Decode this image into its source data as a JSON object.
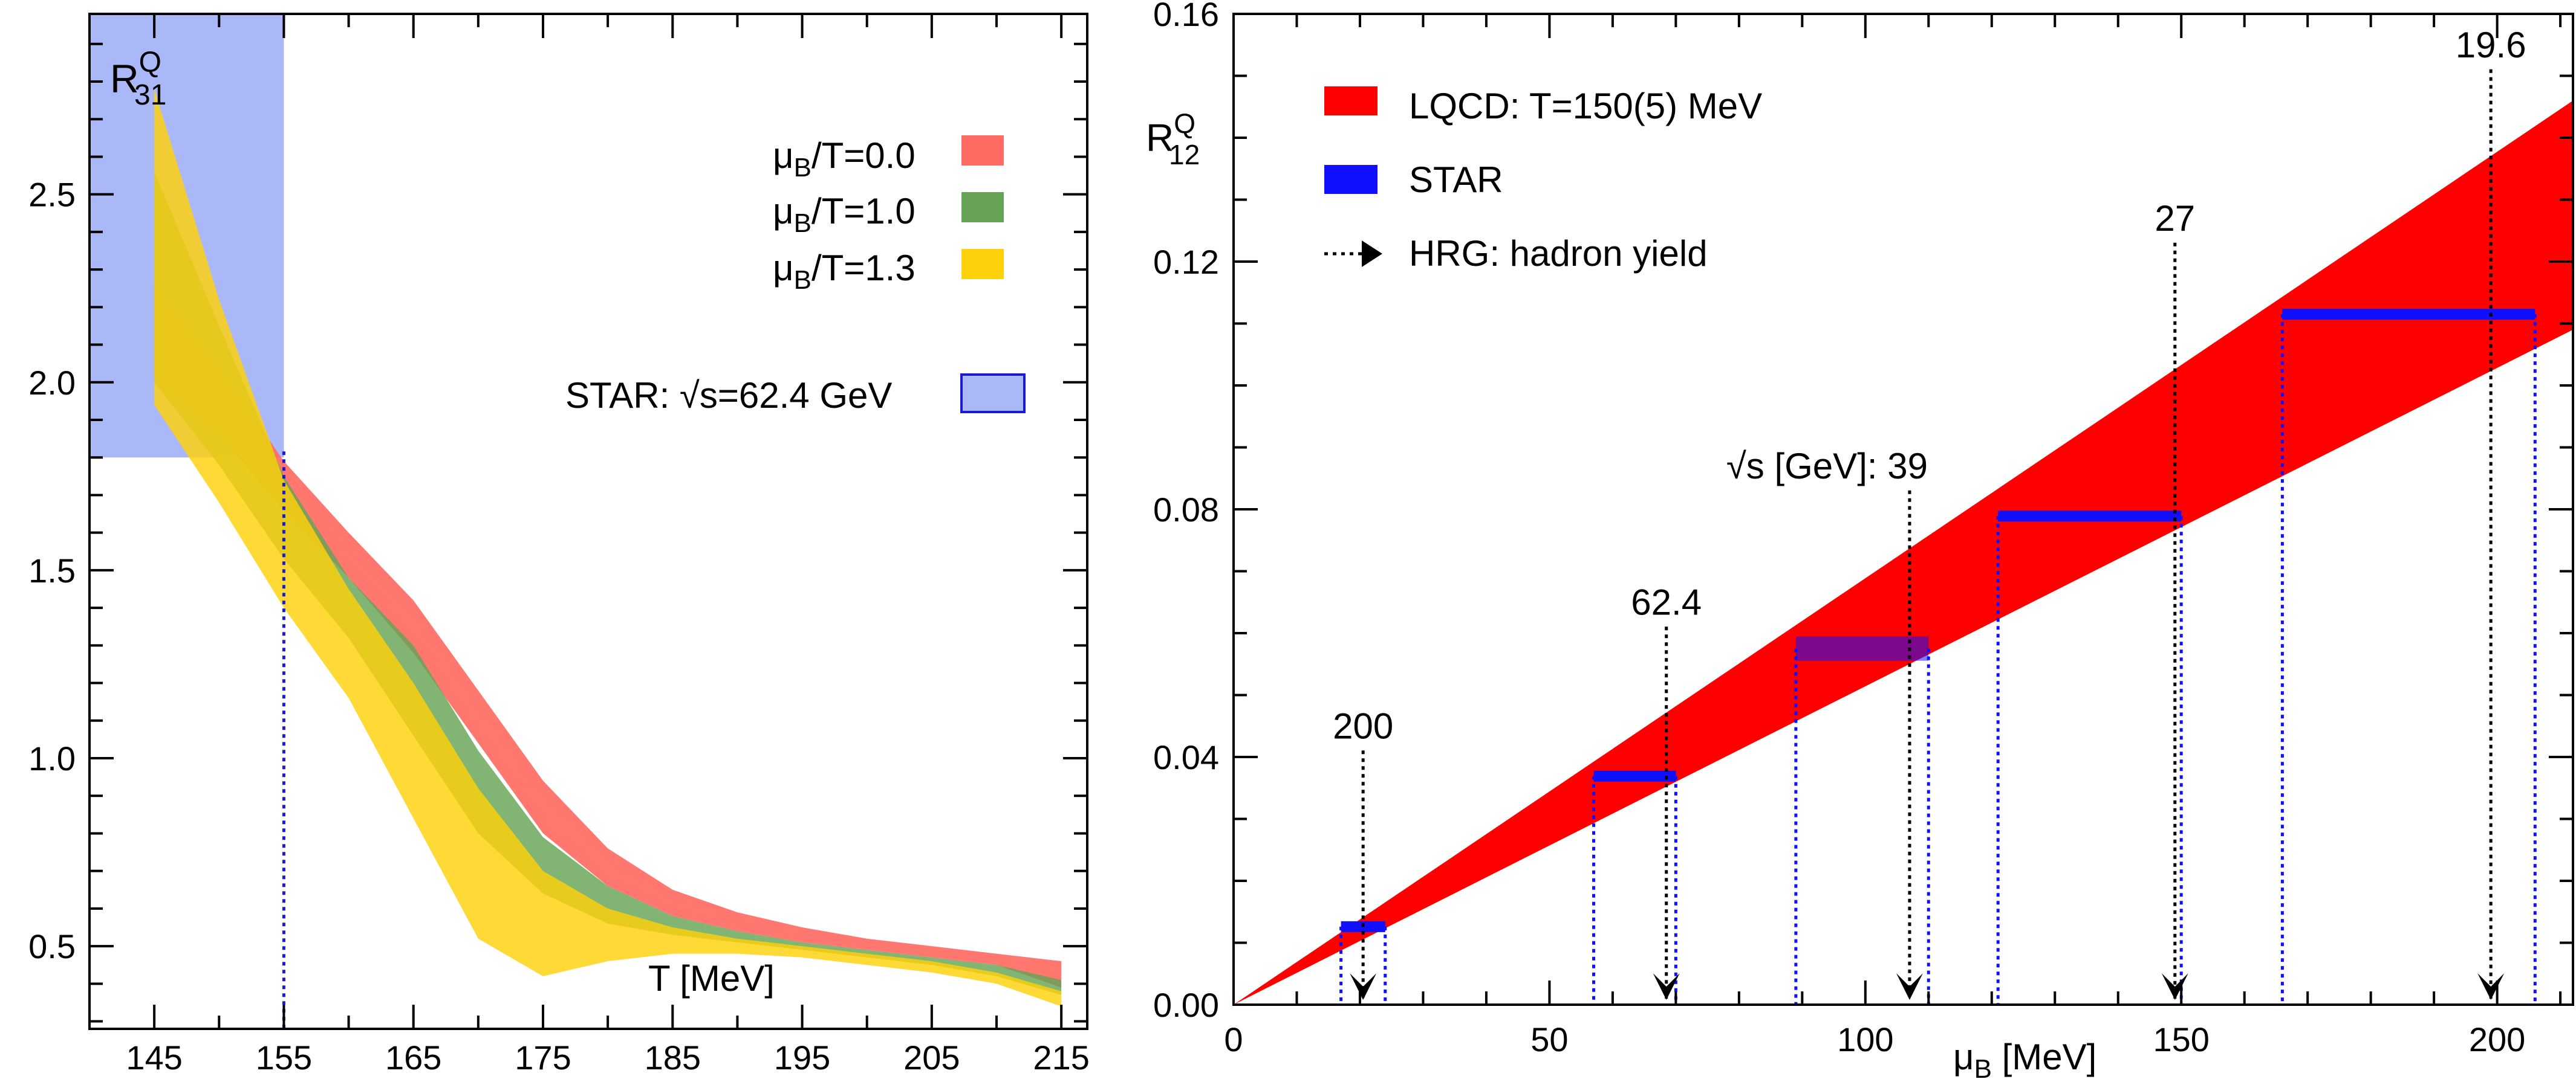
{
  "chart_data": [
    {
      "type": "area",
      "panel": "left",
      "ylabel_main": "R",
      "ylabel_sup": "Q",
      "ylabel_sub": "31",
      "xlabel": "T [MeV]",
      "xlim": [
        140,
        217
      ],
      "ylim": [
        0.28,
        2.98
      ],
      "x_ticks": [
        145,
        155,
        165,
        175,
        185,
        195,
        205,
        215
      ],
      "y_ticks": [
        0.5,
        1.0,
        1.5,
        2.0,
        2.5
      ],
      "y_tick_labels": [
        "0.5",
        "1.0",
        "1.5",
        "2.0",
        "2.5"
      ],
      "series": [
        {
          "name_prefix": "μ",
          "name_sub": "B",
          "name_suffix": "/T=0.0",
          "color": "#ff6b63",
          "x": [
            145,
            150,
            155,
            160,
            165,
            170,
            175,
            180,
            185,
            190,
            195,
            200,
            205,
            210,
            215
          ],
          "lower": [
            2.0,
            1.86,
            1.66,
            1.48,
            1.28,
            1.04,
            0.8,
            0.66,
            0.58,
            0.54,
            0.51,
            0.49,
            0.47,
            0.45,
            0.39
          ],
          "upper": [
            2.26,
            2.04,
            1.79,
            1.6,
            1.42,
            1.18,
            0.94,
            0.76,
            0.65,
            0.59,
            0.55,
            0.52,
            0.5,
            0.48,
            0.46
          ]
        },
        {
          "name_prefix": "μ",
          "name_sub": "B",
          "name_suffix": "/T=1.0",
          "color": "#66a356",
          "x": [
            145,
            150,
            155,
            160,
            165,
            170,
            175,
            180,
            185,
            190,
            195,
            200,
            205,
            210,
            215
          ],
          "lower": [
            2.0,
            1.78,
            1.53,
            1.32,
            1.06,
            0.8,
            0.64,
            0.56,
            0.53,
            0.51,
            0.49,
            0.47,
            0.45,
            0.42,
            0.37
          ],
          "upper": [
            2.56,
            2.15,
            1.75,
            1.48,
            1.3,
            1.02,
            0.79,
            0.66,
            0.58,
            0.54,
            0.51,
            0.49,
            0.47,
            0.45,
            0.41
          ]
        },
        {
          "name_prefix": "μ",
          "name_sub": "B",
          "name_suffix": "/T=1.3",
          "color": "#ffd10a",
          "x": [
            145,
            150,
            155,
            160,
            165,
            170,
            175,
            180,
            185,
            190,
            195,
            200,
            205,
            210,
            215
          ],
          "lower": [
            1.94,
            1.68,
            1.4,
            1.16,
            0.84,
            0.52,
            0.42,
            0.46,
            0.48,
            0.48,
            0.47,
            0.45,
            0.43,
            0.4,
            0.34
          ],
          "upper": [
            2.78,
            2.22,
            1.74,
            1.45,
            1.2,
            0.92,
            0.7,
            0.6,
            0.55,
            0.52,
            0.5,
            0.48,
            0.46,
            0.43,
            0.38
          ]
        }
      ],
      "star": {
        "name": "STAR: √s=62.4 GeV",
        "color": "#aab8f8",
        "edge_color": "#1a1ad0",
        "x_max": 155,
        "y_min": 1.8,
        "guide_x": 155
      },
      "legend_position": "top-right"
    },
    {
      "type": "area",
      "panel": "right",
      "ylabel_main": "R",
      "ylabel_sup": "Q",
      "ylabel_sub": "12",
      "xlabel_prefix": "μ",
      "xlabel_sub": "B",
      "xlabel_suffix": " [MeV]",
      "xlim": [
        0,
        212
      ],
      "ylim": [
        0,
        0.16
      ],
      "x_ticks": [
        0,
        50,
        100,
        150,
        200
      ],
      "y_ticks": [
        0.0,
        0.04,
        0.08,
        0.12,
        0.16
      ],
      "y_tick_labels": [
        "0.00",
        "0.04",
        "0.08",
        "0.12",
        "0.16"
      ],
      "lqcd_band": {
        "name": "LQCD: T=150(5) MeV",
        "color": "#ff0000",
        "x": [
          0,
          212
        ],
        "lower": [
          0,
          0.109
        ],
        "upper": [
          0,
          0.146
        ]
      },
      "star": {
        "name": "STAR",
        "color": "#1010ff",
        "points": [
          {
            "energy": "200",
            "y": 0.0126,
            "x_min": 17,
            "x_max": 24
          },
          {
            "energy": "62.4",
            "y": 0.0369,
            "x_min": 57,
            "x_max": 70
          },
          {
            "energy": "39",
            "y": 0.0575,
            "x_min": 89,
            "x_max": 110
          },
          {
            "energy": "27",
            "y": 0.0789,
            "x_min": 121,
            "x_max": 150
          },
          {
            "energy": "19.6",
            "y": 0.1115,
            "x_min": 166,
            "x_max": 206
          }
        ]
      },
      "hrg": {
        "name": "HRG: hadron yield",
        "points": [
          {
            "label": "200",
            "x": 20.5,
            "label_y": 0.043
          },
          {
            "label": "62.4",
            "x": 68.5,
            "label_y": 0.063
          },
          {
            "label": "√s [GeV]: 39",
            "x": 107,
            "label_y": 0.085
          },
          {
            "label": "27",
            "x": 149,
            "label_y": 0.125
          },
          {
            "label": "19.6",
            "x": 199,
            "label_y": 0.153
          }
        ]
      },
      "legend_position": "top-left"
    }
  ]
}
